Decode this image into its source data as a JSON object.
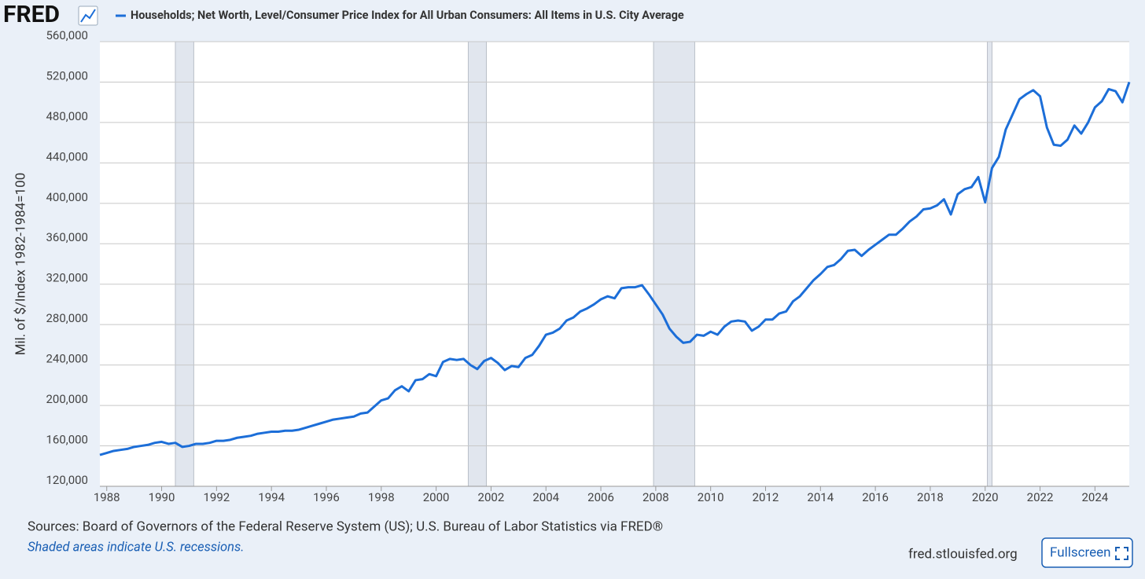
{
  "logo": "FRED",
  "sources": "Sources: Board of Governors of the Federal Reserve System (US); U.S. Bureau of Labor Statistics via FRED®",
  "note": "Shaded areas indicate U.S. recessions.",
  "site": "fred.stlouisfed.org",
  "button": "Fullscreen",
  "chart_data": {
    "type": "line",
    "y_label": "Mil. of $/Index 1982-1984=100",
    "x": [
      1987.75,
      1988,
      1988.25,
      1988.5,
      1988.75,
      1989,
      1989.25,
      1989.5,
      1989.75,
      1990,
      1990.25,
      1990.5,
      1990.75,
      1991,
      1991.25,
      1991.5,
      1991.75,
      1992,
      1992.25,
      1992.5,
      1992.75,
      1993,
      1993.25,
      1993.5,
      1993.75,
      1994,
      1994.25,
      1994.5,
      1994.75,
      1995,
      1995.25,
      1995.5,
      1995.75,
      1996,
      1996.25,
      1996.5,
      1996.75,
      1997,
      1997.25,
      1997.5,
      1997.75,
      1998,
      1998.25,
      1998.5,
      1998.75,
      1999,
      1999.25,
      1999.5,
      1999.75,
      2000,
      2000.25,
      2000.5,
      2000.75,
      2001,
      2001.25,
      2001.5,
      2001.75,
      2002,
      2002.25,
      2002.5,
      2002.75,
      2003,
      2003.25,
      2003.5,
      2003.75,
      2004,
      2004.25,
      2004.5,
      2004.75,
      2005,
      2005.25,
      2005.5,
      2005.75,
      2006,
      2006.25,
      2006.5,
      2006.75,
      2007,
      2007.25,
      2007.5,
      2007.75,
      2008,
      2008.25,
      2008.5,
      2008.75,
      2009,
      2009.25,
      2009.5,
      2009.75,
      2010,
      2010.25,
      2010.5,
      2010.75,
      2011,
      2011.25,
      2011.5,
      2011.75,
      2012,
      2012.25,
      2012.5,
      2012.75,
      2013,
      2013.25,
      2013.5,
      2013.75,
      2014,
      2014.25,
      2014.5,
      2014.75,
      2015,
      2015.25,
      2015.5,
      2015.75,
      2016,
      2016.25,
      2016.5,
      2016.75,
      2017,
      2017.25,
      2017.5,
      2017.75,
      2018,
      2018.25,
      2018.5,
      2018.75,
      2019,
      2019.25,
      2019.5,
      2019.75,
      2020,
      2020.25,
      2020.5,
      2020.75,
      2021,
      2021.25,
      2021.5,
      2021.75,
      2022,
      2022.25,
      2022.5,
      2022.75,
      2023,
      2023.25,
      2023.5,
      2023.75,
      2024,
      2024.25,
      2024.5,
      2024.75,
      2025,
      2025.25
    ],
    "series": [
      {
        "name": "Households; Net Worth, Level/Consumer Price Index for All Urban Consumers: All Items in U.S. City Average",
        "color": "#1c6ed8",
        "values": [
          151000,
          153000,
          155000,
          156000,
          157000,
          159000,
          160000,
          161000,
          163000,
          164000,
          162000,
          163000,
          159000,
          160000,
          162000,
          162000,
          163000,
          165000,
          165000,
          166000,
          168000,
          169000,
          170000,
          172000,
          173000,
          174000,
          174000,
          175000,
          175000,
          176000,
          178000,
          180000,
          182000,
          184000,
          186000,
          187000,
          188000,
          189000,
          192000,
          193000,
          199000,
          205000,
          207000,
          215000,
          219000,
          214000,
          225000,
          226000,
          231000,
          229000,
          243000,
          246000,
          245000,
          246000,
          240000,
          236000,
          244000,
          247000,
          242000,
          235000,
          239000,
          238000,
          247000,
          250000,
          259000,
          270000,
          272000,
          276000,
          284000,
          287000,
          293000,
          296000,
          300000,
          305000,
          308000,
          306000,
          316000,
          317000,
          317000,
          319000,
          310000,
          300000,
          290000,
          276000,
          268000,
          262000,
          263000,
          270000,
          269000,
          273000,
          270000,
          278000,
          283000,
          284000,
          283000,
          274000,
          278000,
          285000,
          285000,
          291000,
          293000,
          303000,
          308000,
          316000,
          324000,
          330000,
          337000,
          339000,
          345000,
          353000,
          354000,
          348000,
          354000,
          359000,
          364000,
          369000,
          369000,
          375000,
          382000,
          387000,
          394000,
          395000,
          398000,
          404000,
          389000,
          409000,
          414000,
          416000,
          426000,
          401000,
          435000,
          446000,
          473000,
          488000,
          503000,
          508000,
          512000,
          506000,
          475000,
          458000,
          457000,
          463000,
          477000,
          469000,
          480000,
          495000,
          501000,
          513000,
          511000,
          500000,
          520000
        ]
      }
    ],
    "recessions": [
      [
        1990.5,
        1991.17
      ],
      [
        2001.17,
        2001.83
      ],
      [
        2007.92,
        2009.42
      ],
      [
        2020.08,
        2020.25
      ]
    ],
    "xlim": [
      1987.75,
      2025.25
    ],
    "xticks": [
      1988,
      1990,
      1992,
      1994,
      1996,
      1998,
      2000,
      2002,
      2004,
      2006,
      2008,
      2010,
      2012,
      2014,
      2016,
      2018,
      2020,
      2022,
      2024
    ],
    "ylim": [
      120000,
      560000
    ],
    "yticks": [
      {
        "value": 120000,
        "label": "120,000"
      },
      {
        "value": 160000,
        "label": "160,000"
      },
      {
        "value": 200000,
        "label": "200,000"
      },
      {
        "value": 240000,
        "label": "240,000"
      },
      {
        "value": 280000,
        "label": "280,000"
      },
      {
        "value": 320000,
        "label": "320,000"
      },
      {
        "value": 360000,
        "label": "360,000"
      },
      {
        "value": 400000,
        "label": "400,000"
      },
      {
        "value": 440000,
        "label": "440,000"
      },
      {
        "value": 480000,
        "label": "480,000"
      },
      {
        "value": 520000,
        "label": "520,000"
      },
      {
        "value": 560000,
        "label": "560,000"
      }
    ],
    "grid": true
  }
}
